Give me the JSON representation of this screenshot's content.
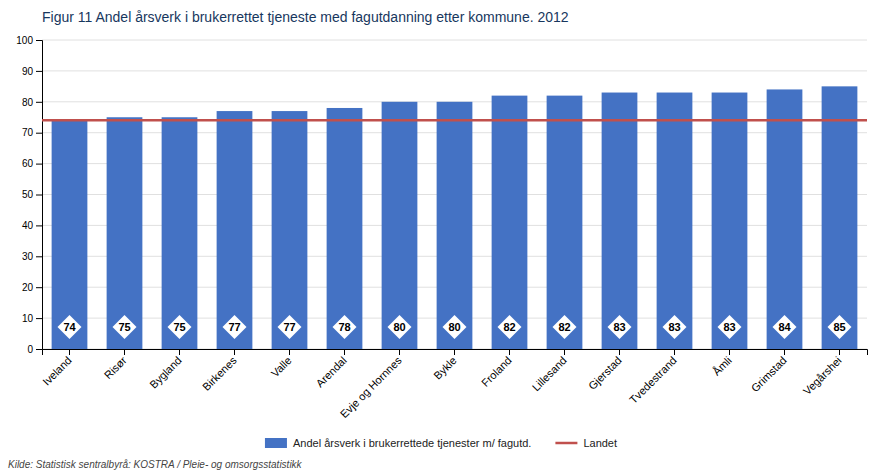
{
  "chart_data": {
    "type": "bar",
    "title": "Figur 11 Andel årsverk i brukerrettet tjeneste med fagutdanning etter kommune. 2012",
    "categories": [
      "Iveland",
      "Risør",
      "Bygland",
      "Birkenes",
      "Valle",
      "Arendal",
      "Evje og Hornnes",
      "Bykle",
      "Froland",
      "Lillesand",
      "Gjerstad",
      "Tvedestrand",
      "Åmli",
      "Grimstad",
      "Vegårshei"
    ],
    "series": [
      {
        "name": "Andel årsverk i brukerrettede tjenester m/ fagutd.",
        "type": "bar",
        "color": "#4472C4",
        "values": [
          74,
          75,
          75,
          77,
          77,
          78,
          80,
          80,
          82,
          82,
          83,
          83,
          83,
          84,
          85
        ]
      },
      {
        "name": "Landet",
        "type": "hline",
        "color": "#C0504D",
        "value": 74
      }
    ],
    "ylim": [
      0,
      100
    ],
    "yticks": [
      0,
      10,
      20,
      30,
      40,
      50,
      60,
      70,
      80,
      90,
      100
    ],
    "grid": true,
    "data_labels": true,
    "legend": "bottom",
    "annotations": [
      "Kilde: Statistisk sentralbyrå: KOSTRA / Pleie- og omsorgsstatistikk"
    ]
  }
}
